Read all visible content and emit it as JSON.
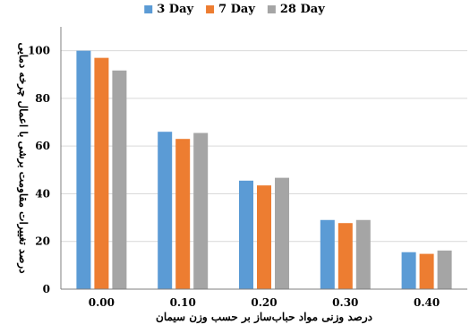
{
  "chart_data": {
    "type": "bar",
    "categories": [
      "0.00",
      "0.10",
      "0.20",
      "0.30",
      "0.40"
    ],
    "series": [
      {
        "name": "3 Day",
        "values": [
          100,
          66,
          45.5,
          29,
          15.5
        ],
        "color": "#5b9bd5"
      },
      {
        "name": "7 Day",
        "values": [
          97,
          63,
          43.5,
          27.7,
          14.8
        ],
        "color": "#ed7d31"
      },
      {
        "name": "28 Day",
        "values": [
          91.7,
          65.5,
          46.7,
          29,
          16.2
        ],
        "color": "#a5a5a5"
      }
    ],
    "title": "",
    "xlabel": "درصد وزنی مواد حباب‌ساز بر حسب وزن سیمان",
    "ylabel": "درصد تغییرات مقاومت برشی با اعمال چرخه دمایی",
    "yticks": [
      "0",
      "20",
      "40",
      "60",
      "80",
      "100"
    ],
    "ylim": [
      0,
      110
    ],
    "grid": true,
    "legend_position": "top"
  }
}
